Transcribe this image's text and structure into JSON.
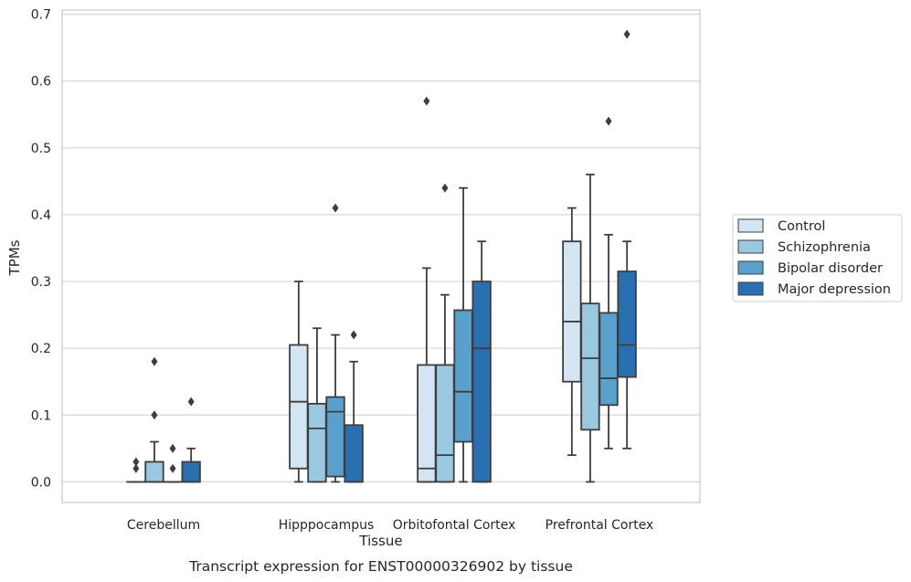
{
  "chart_data": {
    "type": "box",
    "xlabel": "Tissue",
    "ylabel": "TPMs",
    "caption": "Transcript expression for ENST00000326902 by tissue",
    "ylim": [
      -0.03,
      0.705
    ],
    "yticks": [
      0.0,
      0.1,
      0.2,
      0.3,
      0.4,
      0.5,
      0.6,
      0.7
    ],
    "ytick_labels": [
      "0.0",
      "0.1",
      "0.2",
      "0.3",
      "0.4",
      "0.5",
      "0.6",
      "0.7"
    ],
    "grid": true,
    "legend_position": "right",
    "categories": [
      "Cerebellum",
      "Hipppocampus",
      "Orbitofontal Cortex",
      "Prefrontal Cortex"
    ],
    "series": [
      {
        "name": "Control",
        "color": "#d3e4f3",
        "boxes": [
          {
            "whislo": 0.0,
            "q1": 0.0,
            "med": 0.0,
            "q3": 0.0,
            "whishi": 0.0,
            "fliers": [
              0.03,
              0.02
            ]
          },
          {
            "whislo": 0.0,
            "q1": 0.02,
            "med": 0.12,
            "q3": 0.205,
            "whishi": 0.3,
            "fliers": []
          },
          {
            "whislo": 0.0,
            "q1": 0.0,
            "med": 0.02,
            "q3": 0.175,
            "whishi": 0.32,
            "fliers": [
              0.57
            ]
          },
          {
            "whislo": 0.04,
            "q1": 0.15,
            "med": 0.24,
            "q3": 0.36,
            "whishi": 0.41,
            "fliers": []
          }
        ]
      },
      {
        "name": "Schizophrenia",
        "color": "#9ac8e0",
        "boxes": [
          {
            "whislo": 0.0,
            "q1": 0.0,
            "med": 0.0,
            "q3": 0.03,
            "whishi": 0.06,
            "fliers": [
              0.1,
              0.18
            ]
          },
          {
            "whislo": 0.0,
            "q1": 0.0,
            "med": 0.08,
            "q3": 0.117,
            "whishi": 0.23,
            "fliers": []
          },
          {
            "whislo": 0.0,
            "q1": 0.0,
            "med": 0.04,
            "q3": 0.175,
            "whishi": 0.28,
            "fliers": [
              0.44
            ]
          },
          {
            "whislo": 0.0,
            "q1": 0.078,
            "med": 0.185,
            "q3": 0.267,
            "whishi": 0.46,
            "fliers": []
          }
        ]
      },
      {
        "name": "Bipolar disorder",
        "color": "#5aa0cd",
        "boxes": [
          {
            "whislo": 0.0,
            "q1": 0.0,
            "med": 0.0,
            "q3": 0.0,
            "whishi": 0.0,
            "fliers": [
              0.05,
              0.02
            ]
          },
          {
            "whislo": 0.0,
            "q1": 0.008,
            "med": 0.105,
            "q3": 0.127,
            "whishi": 0.22,
            "fliers": [
              0.41
            ]
          },
          {
            "whislo": 0.0,
            "q1": 0.06,
            "med": 0.135,
            "q3": 0.257,
            "whishi": 0.44,
            "fliers": []
          },
          {
            "whislo": 0.05,
            "q1": 0.115,
            "med": 0.155,
            "q3": 0.253,
            "whishi": 0.37,
            "fliers": [
              0.54
            ]
          }
        ]
      },
      {
        "name": "Major depression",
        "color": "#2870b1",
        "boxes": [
          {
            "whislo": 0.0,
            "q1": 0.0,
            "med": 0.0,
            "q3": 0.03,
            "whishi": 0.05,
            "fliers": [
              0.12
            ]
          },
          {
            "whislo": 0.0,
            "q1": 0.0,
            "med": 0.0,
            "q3": 0.085,
            "whishi": 0.18,
            "fliers": [
              0.22
            ]
          },
          {
            "whislo": 0.0,
            "q1": 0.0,
            "med": 0.2,
            "q3": 0.3,
            "whishi": 0.36,
            "fliers": []
          },
          {
            "whislo": 0.05,
            "q1": 0.157,
            "med": 0.205,
            "q3": 0.315,
            "whishi": 0.36,
            "fliers": [
              0.67
            ]
          }
        ]
      }
    ]
  }
}
